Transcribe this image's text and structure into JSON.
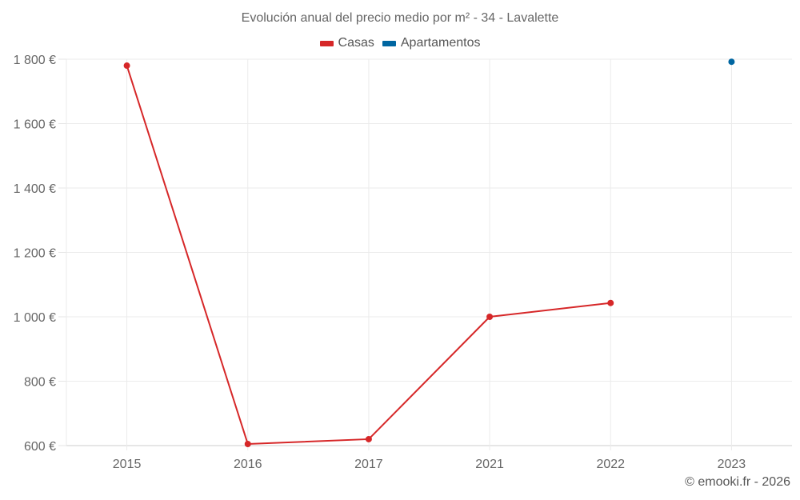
{
  "title": "Evolución anual del precio medio por m² - 34 - Lavalette",
  "legend": [
    {
      "label": "Casas",
      "color": "#d62728"
    },
    {
      "label": "Apartamentos",
      "color": "#0066a1"
    }
  ],
  "credit": "© emooki.fr - 2026",
  "chart_data": {
    "type": "line",
    "title": "Evolución anual del precio medio por m² - 34 - Lavalette",
    "categories": [
      "2015",
      "2016",
      "2017",
      "2021",
      "2022",
      "2023"
    ],
    "series": [
      {
        "name": "Casas",
        "color": "#d62728",
        "values": [
          1780,
          605,
          620,
          1000,
          1043,
          null
        ]
      },
      {
        "name": "Apartamentos",
        "color": "#0066a1",
        "values": [
          null,
          null,
          null,
          null,
          null,
          1792
        ]
      }
    ],
    "xlabel": "",
    "ylabel": "",
    "ylim": [
      600,
      1800
    ],
    "yticks": [
      600,
      800,
      1000,
      1200,
      1400,
      1600,
      1800
    ],
    "ytick_labels": [
      "600 €",
      "800 €",
      "1 000 €",
      "1 200 €",
      "1 400 €",
      "1 600 €",
      "1 800 €"
    ],
    "grid": true,
    "legend_position": "top"
  }
}
